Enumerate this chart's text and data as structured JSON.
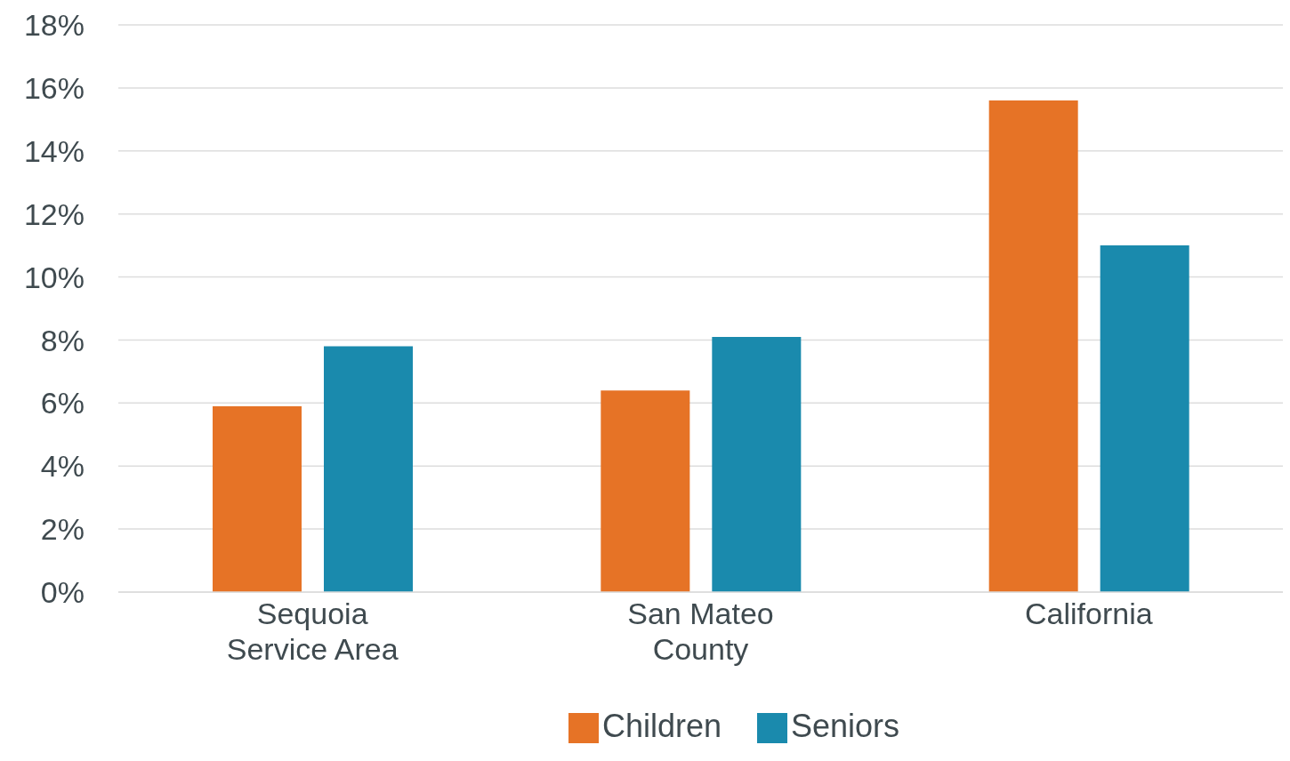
{
  "chart_data": {
    "type": "bar",
    "categories": [
      "Sequoia Service Area",
      "San Mateo County",
      "California"
    ],
    "series": [
      {
        "name": "Children",
        "color": "#e67326",
        "values": [
          5.9,
          6.4,
          15.6
        ]
      },
      {
        "name": "Seniors",
        "color": "#1a8aad",
        "values": [
          7.8,
          8.1,
          11.0
        ]
      }
    ],
    "ylim": [
      0,
      18
    ],
    "yticks": [
      {
        "value": 0,
        "label": "0%"
      },
      {
        "value": 2,
        "label": "2%"
      },
      {
        "value": 4,
        "label": "4%"
      },
      {
        "value": 6,
        "label": "6%"
      },
      {
        "value": 8,
        "label": "8%"
      },
      {
        "value": 10,
        "label": "10%"
      },
      {
        "value": 12,
        "label": "12%"
      },
      {
        "value": 14,
        "label": "14%"
      },
      {
        "value": 16,
        "label": "16%"
      },
      {
        "value": 18,
        "label": "18%"
      }
    ],
    "grid": "y",
    "legend": "bottom"
  }
}
